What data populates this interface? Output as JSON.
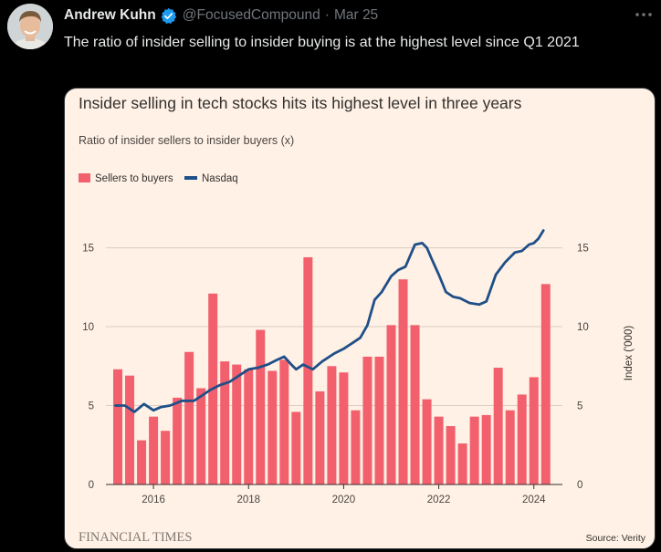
{
  "author": {
    "name": "Andrew Kuhn",
    "handle": "@FocusedCompound",
    "separator": "·",
    "date": "Mar 25"
  },
  "tweet": {
    "text": "The ratio of insider selling to insider buying is at the highest level since Q1 2021"
  },
  "colors": {
    "bar": "#f2606d",
    "line": "#1f4f88",
    "card_bg": "#fff1e5",
    "grid": "#d9cdc2",
    "verified": "#1d9bf0"
  },
  "icons": {
    "verified": "verified-badge-icon",
    "more": "more-options-icon"
  },
  "chart_data": {
    "type": "bar",
    "title": "Insider selling in tech stocks hits its highest level in three years",
    "subtitle": "Ratio of insider sellers to insider buyers (x)",
    "legend": [
      {
        "name": "Sellers to buyers",
        "kind": "bar"
      },
      {
        "name": "Nasdaq",
        "kind": "line"
      }
    ],
    "legend_position": "top-left",
    "ylim": [
      0,
      17
    ],
    "yticks": [
      0,
      5,
      10,
      15
    ],
    "y2label": "Index ('000)",
    "y2lim": [
      0,
      17
    ],
    "y2ticks": [
      0,
      5,
      10,
      15
    ],
    "xlim": [
      2015,
      2024.6
    ],
    "xticks": [
      2016,
      2018,
      2020,
      2022,
      2024
    ],
    "xtick_labels": [
      "2016",
      "2018",
      "2020",
      "2022",
      "2024"
    ],
    "series": [
      {
        "name": "Sellers to buyers",
        "type": "bar",
        "x": [
          2015.25,
          2015.5,
          2015.75,
          2016.0,
          2016.25,
          2016.5,
          2016.75,
          2017.0,
          2017.25,
          2017.5,
          2017.75,
          2018.0,
          2018.25,
          2018.5,
          2018.75,
          2019.0,
          2019.25,
          2019.5,
          2019.75,
          2020.0,
          2020.25,
          2020.5,
          2020.75,
          2021.0,
          2021.25,
          2021.5,
          2021.75,
          2022.0,
          2022.25,
          2022.5,
          2022.75,
          2023.0,
          2023.25,
          2023.5,
          2023.75,
          2024.0,
          2024.25
        ],
        "values": [
          7.3,
          6.9,
          2.8,
          4.3,
          3.4,
          5.5,
          8.4,
          6.1,
          12.1,
          7.8,
          7.6,
          7.3,
          9.8,
          7.2,
          7.9,
          4.6,
          14.4,
          5.9,
          7.5,
          7.1,
          4.7,
          8.1,
          8.1,
          10.1,
          13.0,
          10.1,
          5.4,
          4.3,
          3.7,
          2.6,
          4.3,
          4.4,
          7.4,
          4.7,
          5.7,
          6.8,
          12.7
        ]
      },
      {
        "name": "Nasdaq",
        "type": "line",
        "x": [
          2015.2,
          2015.4,
          2015.6,
          2015.8,
          2016.0,
          2016.15,
          2016.35,
          2016.6,
          2016.85,
          2017.0,
          2017.2,
          2017.4,
          2017.6,
          2017.8,
          2018.0,
          2018.2,
          2018.4,
          2018.6,
          2018.75,
          2018.9,
          2019.0,
          2019.15,
          2019.35,
          2019.55,
          2019.8,
          2020.0,
          2020.2,
          2020.35,
          2020.5,
          2020.65,
          2020.8,
          2021.0,
          2021.15,
          2021.3,
          2021.5,
          2021.65,
          2021.75,
          2021.85,
          2022.0,
          2022.15,
          2022.3,
          2022.45,
          2022.65,
          2022.85,
          2023.0,
          2023.2,
          2023.4,
          2023.5,
          2023.6,
          2023.75,
          2023.9,
          2024.0,
          2024.1,
          2024.2
        ],
        "values": [
          5.0,
          5.0,
          4.6,
          5.1,
          4.7,
          4.9,
          5.0,
          5.3,
          5.3,
          5.6,
          6.0,
          6.3,
          6.5,
          6.9,
          7.3,
          7.4,
          7.6,
          7.9,
          8.1,
          7.6,
          7.3,
          7.6,
          7.3,
          7.8,
          8.3,
          8.6,
          9.0,
          9.3,
          10.1,
          11.7,
          12.2,
          13.2,
          13.6,
          13.8,
          15.2,
          15.3,
          15.0,
          14.3,
          13.3,
          12.2,
          11.9,
          11.8,
          11.5,
          11.4,
          11.6,
          13.3,
          14.1,
          14.4,
          14.7,
          14.8,
          15.2,
          15.3,
          15.6,
          16.1
        ]
      }
    ],
    "branding": "FINANCIAL TIMES",
    "source": "Source: Verity"
  }
}
